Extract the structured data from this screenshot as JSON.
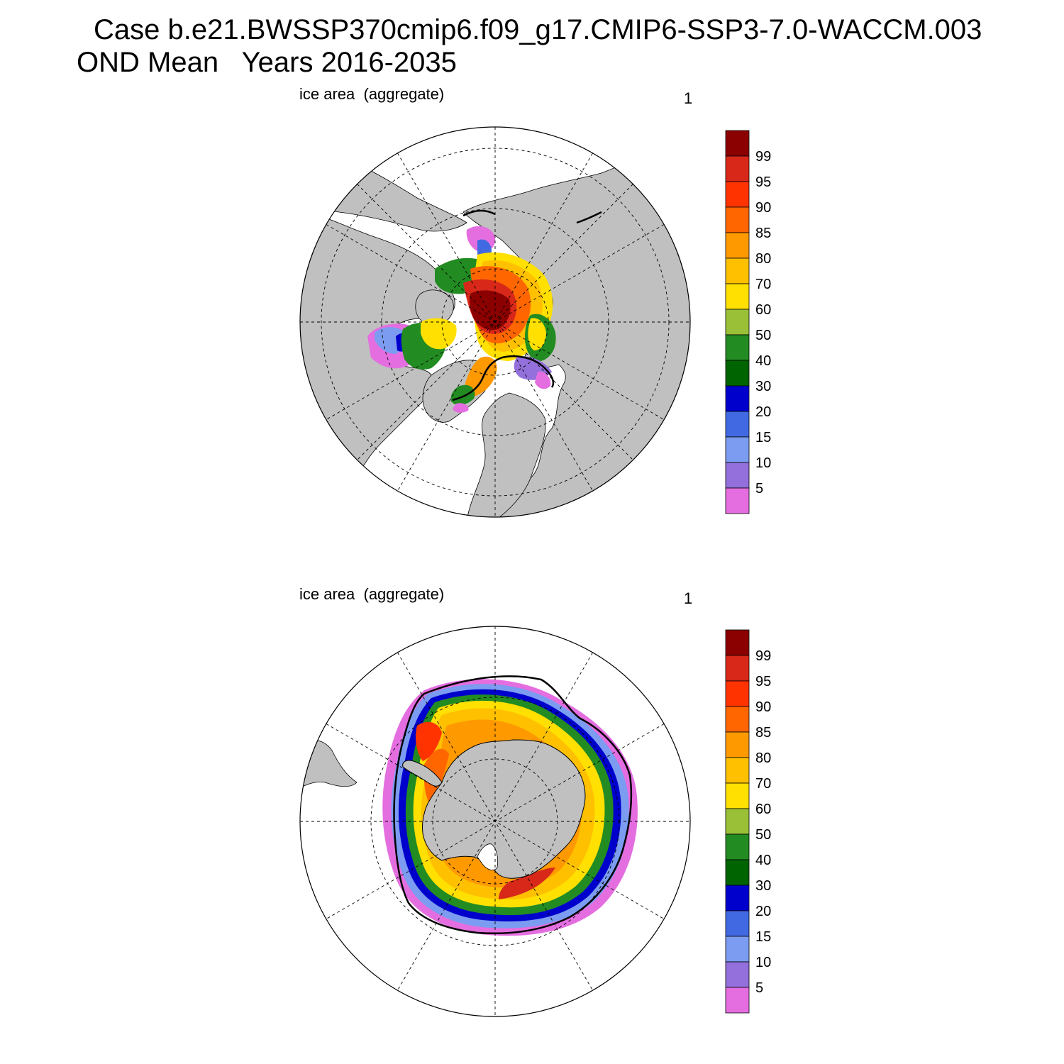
{
  "title": {
    "line1": "Case b.e21.BWSSP370cmip6.f09_g17.CMIP6-SSP3-7.0-WACCM.003",
    "line2": "OND Mean   Years 2016-2035"
  },
  "panels": [
    {
      "label": "ice area  (aggregate)",
      "number": "1",
      "hemisphere": "Northern"
    },
    {
      "label": "ice area  (aggregate)",
      "number": "1",
      "hemisphere": "Southern"
    }
  ],
  "colorbar": {
    "labels": [
      "99",
      "95",
      "90",
      "85",
      "80",
      "70",
      "60",
      "50",
      "40",
      "30",
      "20",
      "15",
      "10",
      "5"
    ],
    "colors_top_to_bottom": [
      "#8b0000",
      "#d7281a",
      "#ff3300",
      "#ff6600",
      "#ff9900",
      "#ffc000",
      "#ffe000",
      "#9ac037",
      "#228b22",
      "#006400",
      "#0000cd",
      "#4169e1",
      "#7b9cf0",
      "#9370db",
      "#e46ee0"
    ]
  },
  "colors": {
    "land": "#c0c0c0",
    "ocean": "#ffffff",
    "ice_edge_contour": "#000000"
  }
}
